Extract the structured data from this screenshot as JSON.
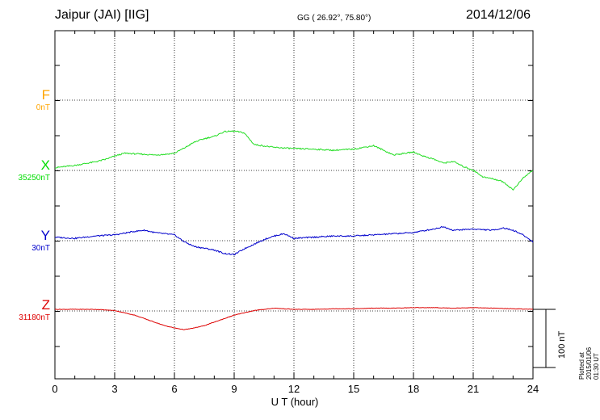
{
  "header": {
    "station": "Jaipur (JAI)  [IIG]",
    "coords": "GG ( 26.92°,  75.80°)",
    "date": "2014/12/06"
  },
  "side_note": "Plotted at 2015/01/06 01:30 UT",
  "scale_bar_label": "100 nT",
  "components": [
    {
      "key": "F",
      "name": "F",
      "baseline": "0nT",
      "color": "#ffa500"
    },
    {
      "key": "X",
      "name": "X",
      "baseline": "35250nT",
      "color": "#00dd00"
    },
    {
      "key": "Y",
      "name": "Y",
      "baseline": "30nT",
      "color": "#0000cc"
    },
    {
      "key": "Z",
      "name": "Z",
      "baseline": "31180nT",
      "color": "#dd0000"
    }
  ],
  "chart_data": {
    "type": "line",
    "title": "Jaipur (JAI)  [IIG]",
    "xlabel": "U T (hour)",
    "xlim": [
      0,
      24
    ],
    "xticks": [
      "0",
      "3",
      "6",
      "9",
      "12",
      "15",
      "18",
      "21",
      "24"
    ],
    "grid": true,
    "units": "nT",
    "scale_bar_nT": 100,
    "series": [
      {
        "name": "F",
        "baseline": "0nT",
        "color": "#ffa500",
        "x": [],
        "y": []
      },
      {
        "name": "X",
        "baseline": "35250nT",
        "color": "#22dd22",
        "x": [
          0,
          1,
          2,
          2.5,
          3,
          3.5,
          4,
          5,
          5.5,
          6,
          6.5,
          7,
          7.5,
          8,
          8.5,
          9,
          9.5,
          10,
          11,
          12,
          13,
          14,
          15,
          16,
          17,
          18,
          18.5,
          19,
          19.5,
          20,
          20.5,
          21,
          21.5,
          22,
          22.5,
          23,
          23.5,
          24
        ],
        "y": [
          35256,
          35260,
          35266,
          35270,
          35276,
          35281,
          35280,
          35278,
          35279,
          35281,
          35290,
          35300,
          35306,
          35310,
          35318,
          35319,
          35316,
          35296,
          35291,
          35289,
          35288,
          35286,
          35288,
          35294,
          35278,
          35283,
          35276,
          35271,
          35264,
          35267,
          35258,
          35252,
          35240,
          35237,
          35232,
          35218,
          35238,
          35252
        ]
      },
      {
        "name": "Y",
        "baseline": "30nT",
        "color": "#0000cc",
        "x": [
          0,
          1,
          2,
          3,
          4,
          4.5,
          5,
          5.5,
          6,
          6.5,
          7,
          8,
          8.5,
          9,
          9.5,
          10,
          10.5,
          11,
          11.5,
          12,
          13,
          14,
          15,
          16,
          17,
          18,
          19,
          19.5,
          20,
          21,
          22,
          22.5,
          23,
          23.5,
          24
        ],
        "y": [
          36,
          34,
          38,
          40,
          46,
          48,
          44,
          42,
          40,
          28,
          20,
          14,
          8,
          6,
          16,
          24,
          32,
          38,
          42,
          34,
          36,
          38,
          38,
          40,
          42,
          44,
          50,
          54,
          48,
          50,
          48,
          52,
          48,
          40,
          28
        ]
      },
      {
        "name": "Z",
        "baseline": "31180nT",
        "color": "#dd0000",
        "x": [
          0,
          1,
          2,
          3,
          3.5,
          4,
          4.5,
          5,
          5.5,
          6,
          6.5,
          7,
          7.5,
          8,
          9,
          10,
          11,
          12,
          13,
          14,
          15,
          16,
          17,
          18,
          19,
          20,
          21,
          22,
          23,
          24
        ],
        "y": [
          31180,
          31180,
          31180,
          31178,
          31174,
          31170,
          31164,
          31158,
          31152,
          31148,
          31145,
          31148,
          31152,
          31158,
          31170,
          31178,
          31182,
          31180,
          31180,
          31181,
          31181,
          31182,
          31182,
          31183,
          31183,
          31182,
          31183,
          31182,
          31181,
          31180
        ]
      }
    ]
  }
}
